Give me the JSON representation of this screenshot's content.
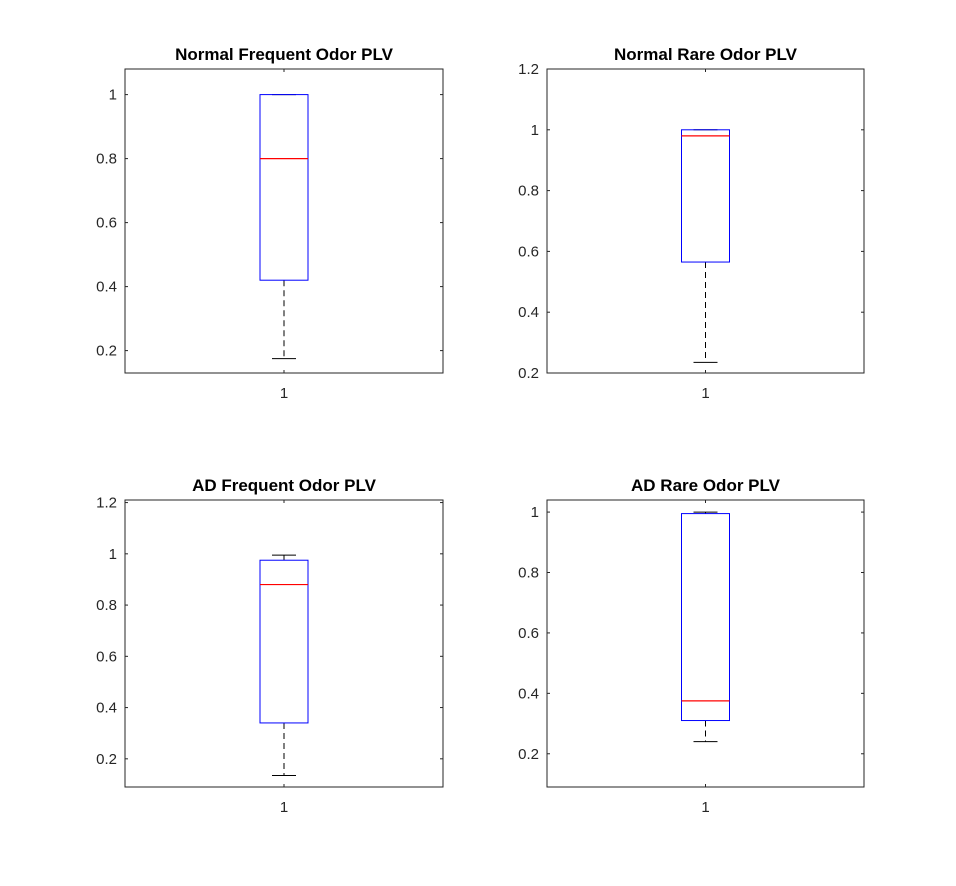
{
  "colors": {
    "box": "#0000ff",
    "median": "#ff0000",
    "whisker": "#000000",
    "axes": "#262626",
    "background": "#ffffff"
  },
  "chart_data": [
    {
      "type": "box",
      "title": "Normal Frequent Odor PLV",
      "categories": [
        "1"
      ],
      "ylim": [
        0.13,
        1.08
      ],
      "yticks": [
        0.2,
        0.4,
        0.6,
        0.8,
        1
      ],
      "ytick_labels": [
        "0.2",
        "0.4",
        "0.6",
        "0.8",
        "1"
      ],
      "xtick_labels": [
        "1"
      ],
      "stats": {
        "whisker_low": 0.175,
        "q1": 0.42,
        "median": 0.8,
        "q3": 1.0,
        "whisker_high": 1.0
      }
    },
    {
      "type": "box",
      "title": "Normal Rare Odor PLV",
      "categories": [
        "1"
      ],
      "ylim": [
        0.2,
        1.2
      ],
      "yticks": [
        0.2,
        0.4,
        0.6,
        0.8,
        1,
        1.2
      ],
      "ytick_labels": [
        "0.2",
        "0.4",
        "0.6",
        "0.8",
        "1",
        "1.2"
      ],
      "xtick_labels": [
        "1"
      ],
      "stats": {
        "whisker_low": 0.235,
        "q1": 0.565,
        "median": 0.98,
        "q3": 1.0,
        "whisker_high": 1.0
      }
    },
    {
      "type": "box",
      "title": "AD Frequent Odor PLV",
      "categories": [
        "1"
      ],
      "ylim": [
        0.09,
        1.21
      ],
      "yticks": [
        0.2,
        0.4,
        0.6,
        0.8,
        1,
        1.2
      ],
      "ytick_labels": [
        "0.2",
        "0.4",
        "0.6",
        "0.8",
        "1",
        "1.2"
      ],
      "xtick_labels": [
        "1"
      ],
      "stats": {
        "whisker_low": 0.135,
        "q1": 0.34,
        "median": 0.88,
        "q3": 0.975,
        "whisker_high": 0.995
      }
    },
    {
      "type": "box",
      "title": "AD Rare Odor PLV",
      "categories": [
        "1"
      ],
      "ylim": [
        0.09,
        1.04
      ],
      "yticks": [
        0.2,
        0.4,
        0.6,
        0.8,
        1
      ],
      "ytick_labels": [
        "0.2",
        "0.4",
        "0.6",
        "0.8",
        "1"
      ],
      "xtick_labels": [
        "1"
      ],
      "stats": {
        "whisker_low": 0.24,
        "q1": 0.31,
        "median": 0.375,
        "q3": 0.995,
        "whisker_high": 1.0
      }
    }
  ]
}
